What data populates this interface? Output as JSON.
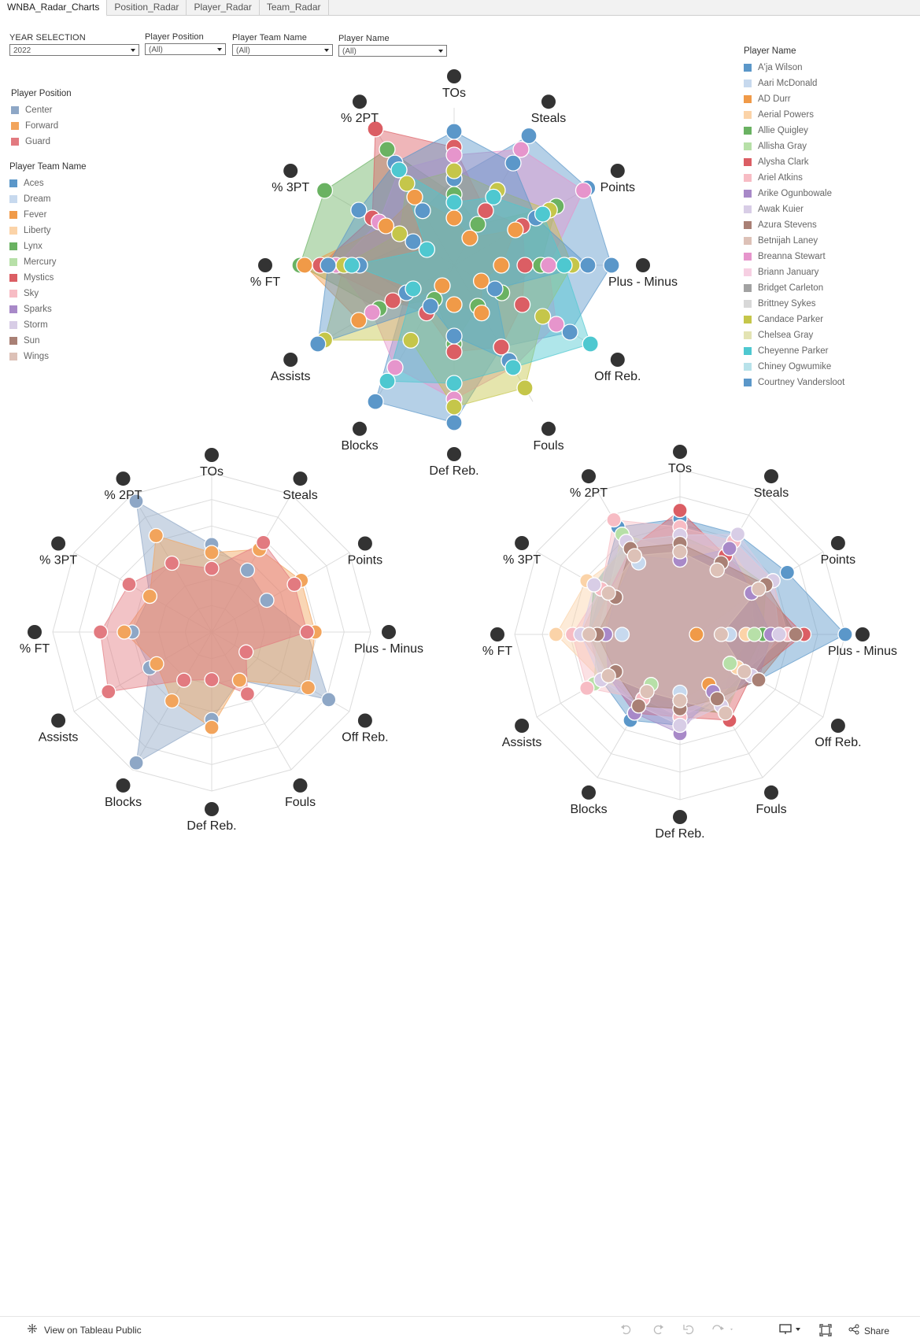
{
  "tabs": [
    "WNBA_Radar_Charts",
    "Position_Radar",
    "Player_Radar",
    "Team_Radar"
  ],
  "filters": [
    {
      "label": "YEAR SELECTION",
      "value": "2022"
    },
    {
      "label": "Player Position",
      "value": "(All)"
    },
    {
      "label": "Player Team Name",
      "value": "(All)"
    },
    {
      "label": "Player Name",
      "value": "(All)"
    }
  ],
  "legend_position": {
    "title": "Player Position",
    "items": [
      {
        "label": "Center",
        "color": "#8ea7c6"
      },
      {
        "label": "Forward",
        "color": "#f2a45c"
      },
      {
        "label": "Guard",
        "color": "#e27a80"
      }
    ]
  },
  "legend_team": {
    "title": "Player Team Name",
    "items": [
      {
        "label": "Aces",
        "color": "#5b97c9"
      },
      {
        "label": "Dream",
        "color": "#c7d9ee"
      },
      {
        "label": "Fever",
        "color": "#f09a48"
      },
      {
        "label": "Liberty",
        "color": "#fbd3a8"
      },
      {
        "label": "Lynx",
        "color": "#6ab262"
      },
      {
        "label": "Mercury",
        "color": "#b7e0a8"
      },
      {
        "label": "Mystics",
        "color": "#db5e64"
      },
      {
        "label": "Sky",
        "color": "#f7bcc4"
      },
      {
        "label": "Sparks",
        "color": "#a889c8"
      },
      {
        "label": "Storm",
        "color": "#d8cde6"
      },
      {
        "label": "Sun",
        "color": "#a98075"
      },
      {
        "label": "Wings",
        "color": "#ddc1b7"
      }
    ]
  },
  "legend_player": {
    "title": "Player Name",
    "items": [
      {
        "label": "A'ja Wilson",
        "color": "#5b97c9"
      },
      {
        "label": "Aari McDonald",
        "color": "#c7d9ee"
      },
      {
        "label": "AD Durr",
        "color": "#f09a48"
      },
      {
        "label": "Aerial Powers",
        "color": "#fbd3a8"
      },
      {
        "label": "Allie Quigley",
        "color": "#6ab262"
      },
      {
        "label": "Allisha Gray",
        "color": "#b7e0a8"
      },
      {
        "label": "Alysha Clark",
        "color": "#db5e64"
      },
      {
        "label": "Ariel Atkins",
        "color": "#f7bcc4"
      },
      {
        "label": "Arike Ogunbowale",
        "color": "#a889c8"
      },
      {
        "label": "Awak Kuier",
        "color": "#d8cde6"
      },
      {
        "label": "Azura Stevens",
        "color": "#a98075"
      },
      {
        "label": "Betnijah Laney",
        "color": "#ddc1b7"
      },
      {
        "label": "Breanna Stewart",
        "color": "#e695cc"
      },
      {
        "label": "Briann January",
        "color": "#f6cfe2"
      },
      {
        "label": "Bridget Carleton",
        "color": "#a2a2a2"
      },
      {
        "label": "Brittney Sykes",
        "color": "#d8d8d8"
      },
      {
        "label": "Candace Parker",
        "color": "#c5c64a"
      },
      {
        "label": "Chelsea Gray",
        "color": "#e3e3b3"
      },
      {
        "label": "Cheyenne Parker",
        "color": "#4ec8d0"
      },
      {
        "label": "Chiney Ogwumike",
        "color": "#b8e2ea"
      },
      {
        "label": "Courtney Vandersloot",
        "color": "#5b97c9"
      }
    ]
  },
  "axes": [
    "TOs",
    "Steals",
    "Points",
    "Plus - Minus",
    "Off Reb.",
    "Fouls",
    "Def Reb.",
    "Blocks",
    "Assists",
    "% FT",
    "% 3PT",
    "% 2PT"
  ],
  "chart_data": [
    {
      "type": "radar",
      "name": "player",
      "axes": [
        "TOs",
        "Steals",
        "Points",
        "Plus - Minus",
        "Off Reb.",
        "Fouls",
        "Def Reb.",
        "Blocks",
        "Assists",
        "% FT",
        "% 3PT",
        "% 2PT"
      ],
      "series": [
        {
          "name": "A'ja Wilson",
          "color": "#5b97c9",
          "values": [
            0.55,
            0.95,
            0.98,
            1.0,
            0.85,
            0.6,
            1.0,
            1.0,
            0.35,
            0.6,
            0.3,
            0.4
          ]
        },
        {
          "name": "Allie Quigley",
          "color": "#6ab262",
          "values": [
            0.45,
            0.3,
            0.75,
            0.55,
            0.35,
            0.3,
            0.5,
            0.25,
            0.55,
            0.98,
            0.95,
            0.85
          ]
        },
        {
          "name": "Alysha Clark",
          "color": "#db5e64",
          "values": [
            0.75,
            0.4,
            0.5,
            0.45,
            0.5,
            0.6,
            0.55,
            0.35,
            0.45,
            0.85,
            0.6,
            1.0
          ]
        },
        {
          "name": "Breanna Stewart",
          "color": "#e695cc",
          "values": [
            0.7,
            0.85,
            0.95,
            0.6,
            0.75,
            0.75,
            0.85,
            0.75,
            0.6,
            0.75,
            0.55,
            0.7
          ]
        },
        {
          "name": "Candace Parker",
          "color": "#c5c64a",
          "values": [
            0.6,
            0.55,
            0.7,
            0.75,
            0.65,
            0.9,
            0.9,
            0.55,
            0.95,
            0.7,
            0.4,
            0.6
          ]
        },
        {
          "name": "AD Durr",
          "color": "#f09a48",
          "values": [
            0.3,
            0.2,
            0.45,
            0.3,
            0.2,
            0.35,
            0.25,
            0.15,
            0.7,
            0.95,
            0.5,
            0.5
          ]
        },
        {
          "name": "Courtney Vandersloot",
          "color": "#5b97c9",
          "values": [
            0.85,
            0.75,
            0.6,
            0.85,
            0.3,
            0.7,
            0.45,
            0.3,
            1.0,
            0.8,
            0.7,
            0.75
          ]
        },
        {
          "name": "Cheyenne Parker",
          "color": "#4ec8d0",
          "values": [
            0.4,
            0.5,
            0.65,
            0.7,
            1.0,
            0.75,
            0.75,
            0.85,
            0.3,
            0.65,
            0.2,
            0.7
          ]
        }
      ]
    },
    {
      "type": "radar",
      "name": "position",
      "axes": [
        "TOs",
        "Steals",
        "Points",
        "Plus - Minus",
        "Off Reb.",
        "Fouls",
        "Def Reb.",
        "Blocks",
        "Assists",
        "% FT",
        "% 3PT",
        "% 2PT"
      ],
      "series": [
        {
          "name": "Center",
          "color": "#8ea7c6",
          "values": [
            0.55,
            0.45,
            0.4,
            0.6,
            0.85,
            0.35,
            0.55,
            0.95,
            0.45,
            0.5,
            0.45,
            0.95
          ]
        },
        {
          "name": "Forward",
          "color": "#f2a45c",
          "values": [
            0.5,
            0.6,
            0.65,
            0.65,
            0.7,
            0.35,
            0.6,
            0.5,
            0.4,
            0.55,
            0.45,
            0.7
          ]
        },
        {
          "name": "Guard",
          "color": "#e27a80",
          "values": [
            0.4,
            0.65,
            0.6,
            0.6,
            0.25,
            0.45,
            0.3,
            0.35,
            0.75,
            0.7,
            0.6,
            0.5
          ]
        }
      ]
    },
    {
      "type": "radar",
      "name": "team",
      "axes": [
        "TOs",
        "Steals",
        "Points",
        "Plus - Minus",
        "Off Reb.",
        "Fouls",
        "Def Reb.",
        "Blocks",
        "Assists",
        "% FT",
        "% 3PT",
        "% 2PT"
      ],
      "series": [
        {
          "name": "Aces",
          "color": "#5b97c9",
          "values": [
            0.7,
            0.7,
            0.75,
            1.0,
            0.55,
            0.45,
            0.55,
            0.6,
            0.55,
            0.55,
            0.55,
            0.75
          ]
        },
        {
          "name": "Dream",
          "color": "#c7d9ee",
          "values": [
            0.5,
            0.45,
            0.5,
            0.3,
            0.35,
            0.4,
            0.35,
            0.4,
            0.45,
            0.35,
            0.45,
            0.5
          ]
        },
        {
          "name": "Fever",
          "color": "#f09a48",
          "values": [
            0.45,
            0.5,
            0.55,
            0.1,
            0.45,
            0.35,
            0.4,
            0.45,
            0.5,
            0.6,
            0.55,
            0.55
          ]
        },
        {
          "name": "Liberty",
          "color": "#fbd3a8",
          "values": [
            0.55,
            0.6,
            0.55,
            0.4,
            0.4,
            0.4,
            0.45,
            0.45,
            0.55,
            0.75,
            0.65,
            0.6
          ]
        },
        {
          "name": "Lynx",
          "color": "#6ab262",
          "values": [
            0.6,
            0.55,
            0.6,
            0.5,
            0.45,
            0.55,
            0.45,
            0.5,
            0.5,
            0.55,
            0.6,
            0.65
          ]
        },
        {
          "name": "Mercury",
          "color": "#b7e0a8",
          "values": [
            0.5,
            0.5,
            0.5,
            0.45,
            0.35,
            0.5,
            0.4,
            0.35,
            0.6,
            0.5,
            0.5,
            0.7
          ]
        },
        {
          "name": "Mystics",
          "color": "#db5e64",
          "values": [
            0.75,
            0.55,
            0.55,
            0.75,
            0.5,
            0.6,
            0.5,
            0.55,
            0.5,
            0.45,
            0.5,
            0.6
          ]
        },
        {
          "name": "Sky",
          "color": "#f7bcc4",
          "values": [
            0.65,
            0.65,
            0.65,
            0.65,
            0.45,
            0.45,
            0.5,
            0.45,
            0.65,
            0.65,
            0.55,
            0.8
          ]
        },
        {
          "name": "Sparks",
          "color": "#a889c8",
          "values": [
            0.45,
            0.6,
            0.5,
            0.55,
            0.55,
            0.4,
            0.6,
            0.55,
            0.5,
            0.45,
            0.45,
            0.55
          ]
        },
        {
          "name": "Storm",
          "color": "#d8cde6",
          "values": [
            0.6,
            0.7,
            0.65,
            0.6,
            0.5,
            0.5,
            0.55,
            0.5,
            0.55,
            0.6,
            0.6,
            0.65
          ]
        },
        {
          "name": "Sun",
          "color": "#a98075",
          "values": [
            0.55,
            0.5,
            0.6,
            0.7,
            0.55,
            0.45,
            0.45,
            0.5,
            0.45,
            0.5,
            0.45,
            0.6
          ]
        },
        {
          "name": "Wings",
          "color": "#ddc1b7",
          "values": [
            0.5,
            0.45,
            0.55,
            0.25,
            0.45,
            0.55,
            0.4,
            0.4,
            0.5,
            0.55,
            0.5,
            0.55
          ]
        }
      ]
    }
  ],
  "bottombar": {
    "view_label": "View on Tableau Public",
    "share_label": "Share"
  }
}
